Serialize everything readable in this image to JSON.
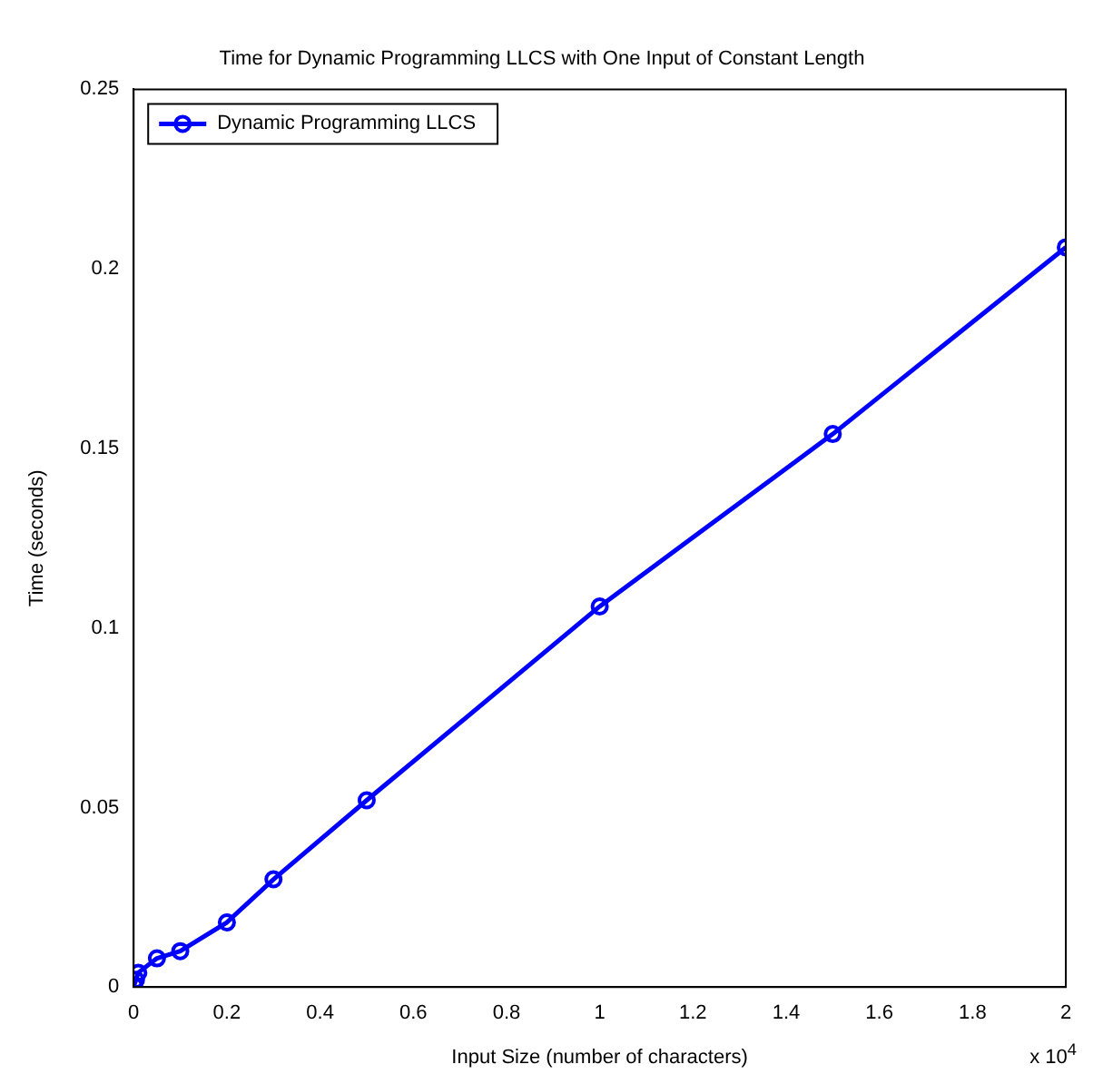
{
  "chart_data": {
    "type": "line",
    "title": "Time for Dynamic Programming LLCS with One Input of Constant Length",
    "xlabel": "Input Size (number of characters)",
    "ylabel": "Time (seconds)",
    "annotations": [
      "x 10$^{4}$"
    ],
    "x": [
      0.001,
      0.005,
      0.01,
      0.05,
      0.1,
      0.2,
      0.3,
      0.5,
      1,
      1.5,
      2
    ],
    "series": [
      {
        "name": "Dynamic Programming LLCS",
        "color": "#0000ff",
        "values": [
          0.0005,
          0.002,
          0.004,
          0.008,
          0.01,
          0.018,
          0.03,
          0.052,
          0.106,
          0.154,
          0.206
        ]
      }
    ],
    "xlim": [
      0,
      2
    ],
    "xticks": [
      0,
      0.2,
      0.4,
      0.6,
      0.8,
      1,
      1.2,
      1.4,
      1.6,
      1.8,
      2
    ],
    "ylim": [
      0,
      0.25
    ],
    "yticks": [
      0,
      0.05,
      0.1,
      0.15,
      0.2,
      0.25
    ],
    "grid": false,
    "legend": "top left",
    "marker": "circle",
    "line_style": "solid"
  }
}
